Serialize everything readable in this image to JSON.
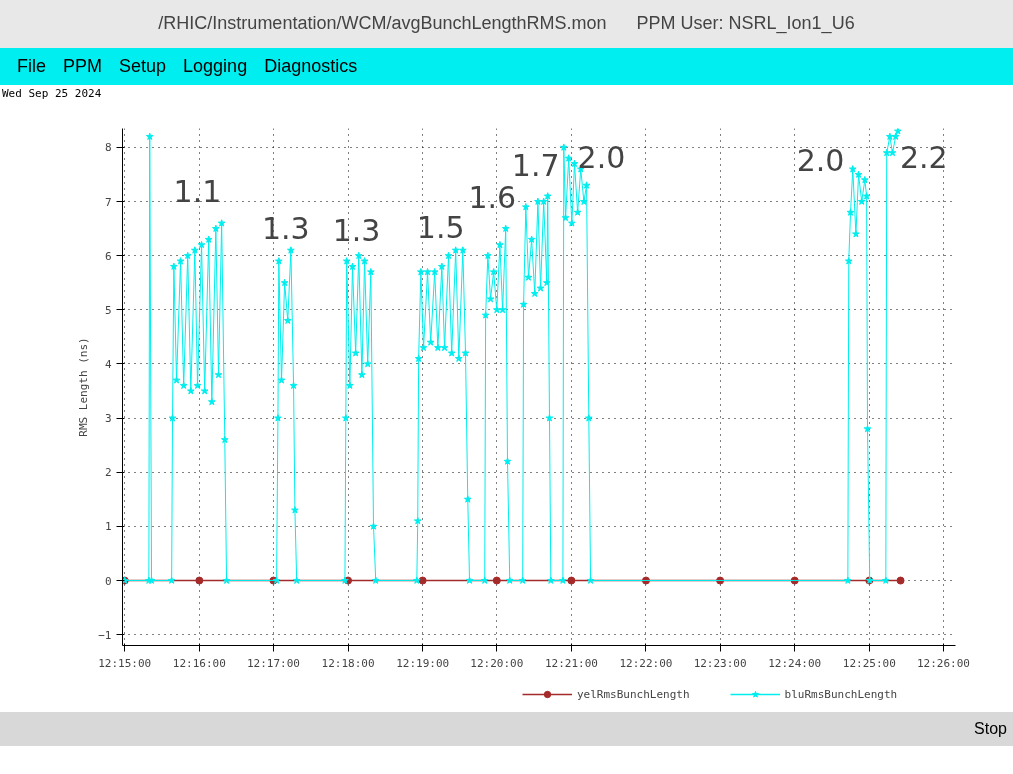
{
  "chart_data": {
    "type": "line",
    "title": "/RHIC/Instrumentation/WCM/avgBunchLengthRMS.mon",
    "subtitle": "PPM User: NSRL_Ion1_U6",
    "ylabel": "RMS Length (ns)",
    "xlim": [
      12.2495,
      12.436
    ],
    "ylim": [
      -1.2,
      8.35
    ],
    "xticks": [
      {
        "value": 12.25,
        "label": "12:15:00"
      },
      {
        "value": 12.2667,
        "label": "12:16:00"
      },
      {
        "value": 12.2833,
        "label": "12:17:00"
      },
      {
        "value": 12.3,
        "label": "12:18:00"
      },
      {
        "value": 12.3167,
        "label": "12:19:00"
      },
      {
        "value": 12.3333,
        "label": "12:20:00"
      },
      {
        "value": 12.35,
        "label": "12:21:00"
      },
      {
        "value": 12.3667,
        "label": "12:22:00"
      },
      {
        "value": 12.3833,
        "label": "12:23:00"
      },
      {
        "value": 12.4,
        "label": "12:24:00"
      },
      {
        "value": 12.4167,
        "label": "12:25:00"
      },
      {
        "value": 12.4333,
        "label": "12:26:00"
      }
    ],
    "yticks": [
      -1,
      0,
      1,
      2,
      3,
      4,
      5,
      6,
      7,
      8
    ],
    "grid": true,
    "legend": "bottom",
    "line_style": "solid",
    "series": [
      {
        "name": "yelRmsBunchLength",
        "color": "#a52a2a",
        "marker": "circle",
        "x": [
          12.25,
          12.2667,
          12.2833,
          12.3,
          12.3167,
          12.3333,
          12.35,
          12.3667,
          12.3833,
          12.4,
          12.4167,
          12.4237
        ],
        "values": [
          0,
          0,
          0,
          0,
          0,
          0,
          0,
          0,
          0,
          0,
          0,
          0
        ]
      },
      {
        "name": "bluRmsBunchLength",
        "color": "#00eeee",
        "marker": "star",
        "x": [
          12.25,
          12.2554,
          12.2556,
          12.256,
          12.2605,
          12.2607,
          12.261,
          12.2616,
          12.2625,
          12.2632,
          12.2641,
          12.2648,
          12.2657,
          12.2663,
          12.2672,
          12.2679,
          12.2688,
          12.2695,
          12.2704,
          12.271,
          12.2717,
          12.2724,
          12.2728,
          12.284,
          12.2843,
          12.2845,
          12.2851,
          12.2858,
          12.2865,
          12.2872,
          12.2878,
          12.2881,
          12.2885,
          12.2993,
          12.2995,
          12.2997,
          12.3004,
          12.301,
          12.3017,
          12.3024,
          12.3031,
          12.3037,
          12.3044,
          12.3051,
          12.3057,
          12.3062,
          12.3154,
          12.3156,
          12.3158,
          12.3163,
          12.3169,
          12.3178,
          12.3185,
          12.3194,
          12.3201,
          12.321,
          12.3216,
          12.3225,
          12.3232,
          12.3241,
          12.3248,
          12.3257,
          12.3263,
          12.3268,
          12.3272,
          12.3306,
          12.3308,
          12.3313,
          12.3319,
          12.3326,
          12.3333,
          12.334,
          12.3346,
          12.3353,
          12.3357,
          12.3362,
          12.3391,
          12.3393,
          12.3398,
          12.3404,
          12.3411,
          12.3418,
          12.3425,
          12.3431,
          12.3438,
          12.3445,
          12.3447,
          12.3451,
          12.3454,
          12.3481,
          12.3483,
          12.3487,
          12.3494,
          12.3501,
          12.3507,
          12.3514,
          12.3521,
          12.3528,
          12.3534,
          12.3539,
          12.3543,
          12.4119,
          12.4121,
          12.4125,
          12.413,
          12.4137,
          12.4143,
          12.415,
          12.4157,
          12.4161,
          12.4163,
          12.4168,
          12.4204,
          12.4206,
          12.4213,
          12.4219,
          12.4226,
          12.4231
        ],
        "values": [
          0,
          0,
          8.2,
          0,
          0,
          3.0,
          5.8,
          3.7,
          5.9,
          3.6,
          6.0,
          3.5,
          6.1,
          3.6,
          6.2,
          3.5,
          6.3,
          3.3,
          6.5,
          3.8,
          6.6,
          2.6,
          0,
          0,
          3.0,
          5.9,
          3.7,
          5.5,
          4.8,
          6.1,
          3.6,
          1.3,
          0,
          0,
          3.0,
          5.9,
          3.6,
          5.8,
          4.2,
          6.0,
          3.8,
          5.9,
          4.0,
          5.7,
          1.0,
          0,
          0,
          1.1,
          4.1,
          5.7,
          4.3,
          5.7,
          4.4,
          5.7,
          4.3,
          5.8,
          4.3,
          6.0,
          4.2,
          6.1,
          4.1,
          6.1,
          4.2,
          1.5,
          0,
          0,
          4.9,
          6.0,
          5.2,
          5.7,
          5.0,
          6.2,
          5.0,
          6.5,
          2.2,
          0,
          0,
          5.1,
          6.9,
          5.6,
          6.3,
          5.3,
          7.0,
          5.4,
          7.0,
          5.5,
          7.1,
          3.0,
          0,
          0,
          8.0,
          6.7,
          7.8,
          6.6,
          7.7,
          6.8,
          7.6,
          7.0,
          7.3,
          3.0,
          0,
          0,
          5.9,
          6.8,
          7.6,
          6.4,
          7.5,
          7.0,
          7.4,
          7.1,
          2.8,
          0,
          0,
          7.9,
          8.2,
          7.9,
          8.2,
          8.3
        ]
      }
    ],
    "annotations": [
      "1.1",
      "1.3",
      "1.3",
      "1.5",
      "1.6",
      "1.7",
      "2.0",
      "2.0",
      "2.2",
      "File",
      "PPM",
      "Setup",
      "Logging",
      "Diagnostics",
      "Wed Sep 25 2024",
      "Stop"
    ]
  }
}
